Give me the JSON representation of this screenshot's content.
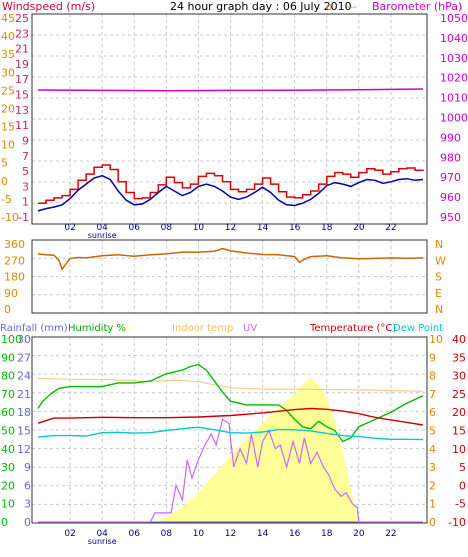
{
  "page": {
    "title": "24 hour graph day : 06 July 2010"
  },
  "colors": {
    "background": "#ffffff",
    "frame": "#333333",
    "grid": "#c8c8c8",
    "axis_title": "#cc2266",
    "windspeed": "#dd0000",
    "gust": "#0000aa",
    "barometer": "#cc00cc",
    "direction": "#cc6600",
    "rain_scale": "#6666dd",
    "humidity": "#00bb00",
    "solar": "#ffff99",
    "indoor": "#ffcc88",
    "uv": "#cc66ff",
    "temperature": "#cc0000",
    "dewpoint": "#00cccc",
    "right_scale": "#dd8800"
  },
  "chart_data": [
    {
      "id": "wind_baro",
      "type": "line",
      "title": "24 hour graph day : 06 July 2010",
      "legend": [
        "Windspeed (m/s)",
        "Barometer (hPa)"
      ],
      "y_left_outer": {
        "ticks": [
          "45",
          "40",
          "35",
          "30",
          "25",
          "20",
          "15",
          "10",
          "5",
          "0",
          "-5",
          "-10"
        ]
      },
      "y_left_inner": {
        "ticks": [
          "25",
          "23",
          "21",
          "19",
          "17",
          "15",
          "13",
          "11",
          "9",
          "7",
          "5",
          "3",
          "1",
          "-1"
        ]
      },
      "y_right": {
        "label": "Barometer (hPa)",
        "ticks": [
          "1050",
          "1040",
          "1030",
          "1020",
          "1010",
          "1000",
          "990",
          "980",
          "970",
          "960",
          "950"
        ]
      },
      "ylim_wind": [
        -1,
        25
      ],
      "ylim_baro": [
        950,
        1050
      ],
      "x_ticks": [
        "02",
        "04",
        "06",
        "08",
        "10",
        "12",
        "14",
        "16",
        "18",
        "20",
        "22"
      ],
      "x_annotation": "sunrise",
      "series": [
        {
          "name": "Barometer (hPa)",
          "x": [
            0,
            4,
            8,
            12,
            16,
            20,
            24
          ],
          "values": [
            1013.8,
            1013.6,
            1013.5,
            1013.6,
            1013.7,
            1013.9,
            1014.3
          ]
        },
        {
          "name": "Windspeed (m/s)",
          "x": [
            0,
            0.5,
            1,
            1.5,
            2,
            2.5,
            3,
            3.5,
            4,
            4.5,
            5,
            5.5,
            6,
            6.5,
            7,
            7.5,
            8,
            8.5,
            9,
            9.5,
            10,
            10.5,
            11,
            11.5,
            12,
            12.5,
            13,
            13.5,
            14,
            14.5,
            15,
            15.5,
            16,
            16.5,
            17,
            17.5,
            18,
            18.5,
            19,
            19.5,
            20,
            20.5,
            21,
            21.5,
            22,
            22.5,
            23,
            23.5,
            24
          ],
          "values": [
            0.8,
            1.2,
            1.5,
            1.8,
            2.6,
            3.8,
            4.6,
            5.5,
            5.8,
            5.2,
            3.6,
            2.2,
            1.4,
            1.5,
            2.2,
            3.2,
            4.2,
            3.5,
            2.8,
            3.3,
            4.3,
            4.7,
            4.4,
            3.6,
            2.6,
            2.3,
            2.6,
            3.3,
            4.1,
            3.3,
            2.3,
            1.6,
            1.5,
            1.9,
            2.4,
            3.3,
            4.3,
            4.8,
            4.6,
            4.2,
            4.8,
            5.3,
            5.1,
            4.6,
            4.9,
            5.3,
            5.4,
            5.1,
            5.2
          ]
        },
        {
          "name": "Wind gust",
          "x": [
            0,
            0.5,
            1,
            1.5,
            2,
            2.5,
            3,
            3.5,
            4,
            4.5,
            5,
            5.5,
            6,
            6.5,
            7,
            7.5,
            8,
            8.5,
            9,
            9.5,
            10,
            10.5,
            11,
            11.5,
            12,
            12.5,
            13,
            13.5,
            14,
            14.5,
            15,
            15.5,
            16,
            16.5,
            17,
            17.5,
            18,
            18.5,
            19,
            19.5,
            20,
            20.5,
            21,
            21.5,
            22,
            22.5,
            23,
            23.5,
            24
          ],
          "values": [
            -0.2,
            0.1,
            0.3,
            0.6,
            1.4,
            2.5,
            3.3,
            4.1,
            4.4,
            3.9,
            2.4,
            1.2,
            0.6,
            0.7,
            1.3,
            2.2,
            3.0,
            2.4,
            1.8,
            2.2,
            3.0,
            3.3,
            3.0,
            2.4,
            1.6,
            1.3,
            1.6,
            2.2,
            2.9,
            2.2,
            1.2,
            0.6,
            0.5,
            0.8,
            1.3,
            2.1,
            3.1,
            3.5,
            3.3,
            3.0,
            3.5,
            3.9,
            3.8,
            3.4,
            3.6,
            3.9,
            4.0,
            3.8,
            3.9
          ]
        }
      ]
    },
    {
      "id": "direction",
      "type": "line",
      "y_left": {
        "ticks": [
          "360",
          "270",
          "180",
          "90",
          "0"
        ]
      },
      "y_right": {
        "ticks": [
          "N",
          "W",
          "S",
          "E",
          "N"
        ]
      },
      "ylim": [
        0,
        360
      ],
      "series": [
        {
          "name": "Wind direction",
          "x": [
            0,
            0.5,
            1,
            1.3,
            1.5,
            1.7,
            2,
            2.5,
            3,
            4,
            5,
            6,
            7,
            8,
            9,
            10,
            11,
            11.5,
            12,
            13,
            14,
            15,
            16,
            16.3,
            16.6,
            17,
            18,
            19,
            20,
            21,
            22,
            23,
            24
          ],
          "values": [
            305,
            300,
            298,
            270,
            220,
            245,
            280,
            285,
            283,
            295,
            300,
            292,
            300,
            305,
            315,
            315,
            320,
            335,
            322,
            310,
            302,
            300,
            290,
            258,
            275,
            290,
            295,
            283,
            278,
            280,
            283,
            280,
            283
          ]
        }
      ]
    },
    {
      "id": "temp_humidity",
      "type": "line",
      "legend": [
        "Rainfall (mm)",
        "Humidity %",
        "Indoor temp",
        "UV",
        "Temperature (°C)",
        "Dew Point"
      ],
      "y_left_outer": {
        "label": "Humidity %",
        "ticks": [
          "100",
          "90",
          "80",
          "70",
          "60",
          "50",
          "40",
          "30",
          "20",
          "10",
          "0"
        ]
      },
      "y_left_inner": {
        "label": "Rainfall (mm)",
        "ticks": [
          "30",
          "27",
          "24",
          "21",
          "18",
          "15",
          "12",
          "9",
          "6",
          "3",
          "0"
        ]
      },
      "y_right_inner": {
        "ticks": [
          "10",
          "9",
          "8",
          "7",
          "6",
          "5",
          "4",
          "3",
          "2",
          "1",
          "0"
        ]
      },
      "y_right_outer": {
        "label": "Temperature (°C)",
        "ticks": [
          "40",
          "35",
          "30",
          "25",
          "20",
          "15",
          "10",
          "5",
          "0",
          "-5",
          "-10"
        ]
      },
      "ylim_humidity": [
        0,
        100
      ],
      "ylim_temperature": [
        -10,
        40
      ],
      "ylim_uv": [
        0,
        10
      ],
      "x_ticks": [
        "02",
        "04",
        "06",
        "08",
        "10",
        "12",
        "14",
        "16",
        "18",
        "20",
        "22"
      ],
      "x_annotation": "sunrise",
      "series": [
        {
          "name": "Indoor temp",
          "x": [
            0,
            2,
            4,
            6,
            7,
            8,
            9,
            10,
            11,
            12,
            14,
            16,
            18,
            20,
            22,
            24
          ],
          "values": [
            29.2,
            29.0,
            29.0,
            28.6,
            28.4,
            28.6,
            28.7,
            28.3,
            27.5,
            26.7,
            26.3,
            26.3,
            26.2,
            26.1,
            25.9,
            25.7
          ]
        },
        {
          "name": "Humidity %",
          "x": [
            0,
            0.3,
            0.8,
            1.3,
            2,
            3,
            4,
            5,
            6,
            7,
            7.5,
            8,
            8.5,
            9,
            9.5,
            10,
            10.5,
            11,
            11.5,
            12,
            13,
            14,
            15,
            15.5,
            16,
            16.5,
            17,
            17.5,
            18,
            18.5,
            19,
            19.5,
            20,
            21,
            22,
            23,
            24
          ],
          "values": [
            62,
            66,
            70,
            73,
            74,
            74,
            74,
            76,
            76,
            77,
            79,
            81,
            82,
            83,
            85,
            86,
            83,
            77,
            71,
            66,
            64,
            64,
            64,
            61,
            56,
            52,
            51,
            55,
            52,
            50,
            44,
            46,
            52,
            56,
            60,
            65,
            69
          ]
        },
        {
          "name": "Temperature (°C)",
          "x": [
            0,
            1,
            2,
            4,
            6,
            8,
            10,
            12,
            14,
            16,
            17,
            18,
            19,
            20,
            21,
            22,
            23,
            24
          ],
          "values": [
            17.0,
            18.4,
            18.4,
            18.6,
            18.5,
            18.5,
            18.7,
            19.1,
            19.8,
            20.7,
            21.0,
            20.8,
            20.3,
            19.6,
            18.6,
            17.9,
            17.2,
            16.5
          ]
        },
        {
          "name": "Dew Point",
          "x": [
            0,
            1,
            2,
            3,
            4,
            5,
            6,
            7,
            8,
            9,
            10,
            11,
            12,
            13,
            14,
            15,
            16,
            17,
            18,
            19,
            20,
            21,
            22,
            23,
            24
          ],
          "values": [
            13.2,
            13.6,
            13.6,
            13.5,
            14.4,
            14.5,
            14.3,
            14.4,
            15.0,
            15.5,
            15.9,
            15.2,
            14.4,
            14.3,
            14.6,
            15.3,
            15.2,
            14.9,
            14.2,
            13.6,
            13.3,
            12.9,
            12.6,
            12.6,
            12.5
          ]
        },
        {
          "name": "UV",
          "x": [
            0,
            7,
            7.3,
            8.3,
            8.6,
            9,
            9.3,
            9.6,
            10,
            10.4,
            10.8,
            11.1,
            11.5,
            11.9,
            12.2,
            12.6,
            13,
            13.3,
            13.7,
            14,
            14.4,
            14.8,
            15.1,
            15.5,
            15.9,
            16.3,
            16.6,
            17,
            17.4,
            17.8,
            18.1,
            18.5,
            18.9,
            19.2,
            19.6,
            19.9,
            20,
            24
          ],
          "values": [
            0,
            0,
            0.5,
            0.5,
            2.0,
            1.2,
            3.4,
            2.4,
            3.4,
            4.2,
            4.8,
            4.2,
            5.6,
            5.4,
            3.0,
            4.0,
            3.2,
            4.8,
            3.0,
            4.4,
            5.0,
            4.0,
            4.2,
            3.0,
            4.4,
            3.2,
            4.6,
            3.2,
            3.8,
            3.0,
            2.6,
            1.8,
            1.4,
            1.6,
            1.0,
            0.8,
            0,
            0
          ]
        },
        {
          "name": "Solar radiation",
          "x": [
            0,
            7.5,
            8,
            9,
            10,
            11,
            12,
            13,
            14,
            15,
            16,
            16.5,
            17,
            17.5,
            18,
            18.5,
            19,
            19.5,
            20,
            24
          ],
          "values": [
            0,
            0,
            0.3,
            0.8,
            1.6,
            2.6,
            3.6,
            4.6,
            5.4,
            6.2,
            7.0,
            7.5,
            7.9,
            7.5,
            6.8,
            5.5,
            3.8,
            1.8,
            0,
            0
          ]
        },
        {
          "name": "Rainfall (mm)",
          "x": [
            0,
            24
          ],
          "values": [
            0,
            0
          ]
        }
      ]
    }
  ]
}
